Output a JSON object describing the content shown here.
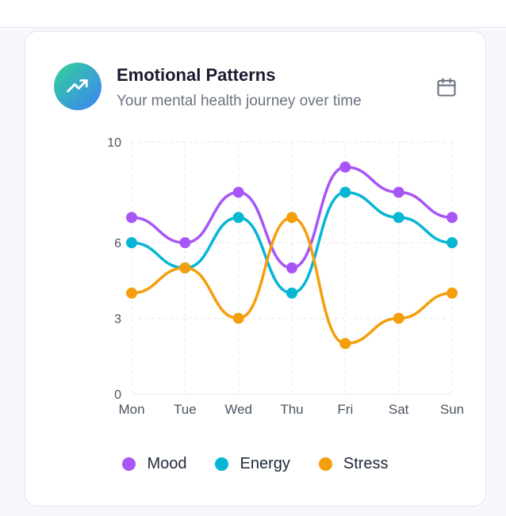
{
  "card": {
    "title": "Emotional Patterns",
    "subtitle": "Your mental health journey over time",
    "header_icon": "trending-up-icon",
    "action_icon": "calendar-icon"
  },
  "colors": {
    "mood": "#a855f7",
    "energy": "#06b6d4",
    "stress": "#f59e0b",
    "icon_gradient_start": "#34d399",
    "icon_gradient_end": "#3b82f6"
  },
  "chart_data": {
    "type": "line",
    "categories": [
      "Mon",
      "Tue",
      "Wed",
      "Thu",
      "Fri",
      "Sat",
      "Sun"
    ],
    "y_ticks": [
      0,
      3,
      6,
      10
    ],
    "ylim": [
      0,
      10
    ],
    "grid": true,
    "legend_position": "bottom",
    "series": [
      {
        "name": "Mood",
        "color": "#a855f7",
        "values": [
          7,
          6,
          8,
          5,
          9,
          8,
          7
        ]
      },
      {
        "name": "Energy",
        "color": "#06b6d4",
        "values": [
          6,
          5,
          7,
          4,
          8,
          7,
          6
        ]
      },
      {
        "name": "Stress",
        "color": "#f59e0b",
        "values": [
          4,
          5,
          3,
          7,
          2,
          3,
          4
        ]
      }
    ]
  }
}
